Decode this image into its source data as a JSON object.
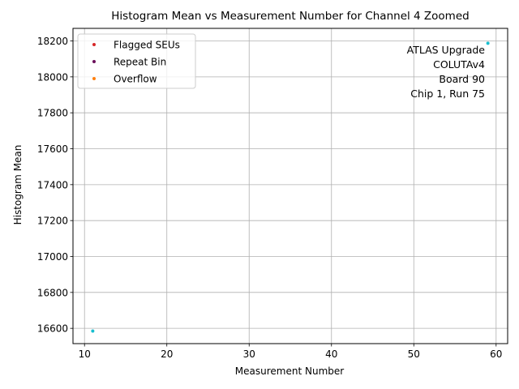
{
  "chart_data": {
    "type": "scatter",
    "title": "Histogram Mean vs Measurement Number for Channel 4 Zoomed",
    "xlabel": "Measurement Number",
    "ylabel": "Histogram Mean",
    "xlim": [
      8.6,
      61.4
    ],
    "ylim": [
      16515,
      18270
    ],
    "xticks": [
      10,
      20,
      30,
      40,
      50,
      60
    ],
    "yticks": [
      16600,
      16800,
      17000,
      17200,
      17400,
      17600,
      17800,
      18000,
      18200
    ],
    "grid": true,
    "legend_position": "top-left",
    "series": [
      {
        "name": "Flagged SEUs",
        "color": "#d62728",
        "points": []
      },
      {
        "name": "Repeat Bin",
        "color": "#6a0f5a",
        "points": []
      },
      {
        "name": "Overflow",
        "color": "#ff7f0e",
        "points": []
      },
      {
        "name": "",
        "color": "#17becf",
        "points": [
          [
            11,
            16585
          ],
          [
            59,
            18187
          ]
        ]
      }
    ],
    "annotation_lines": [
      "ATLAS Upgrade",
      "COLUTAv4",
      "Board 90",
      "Chip 1, Run 75"
    ]
  }
}
